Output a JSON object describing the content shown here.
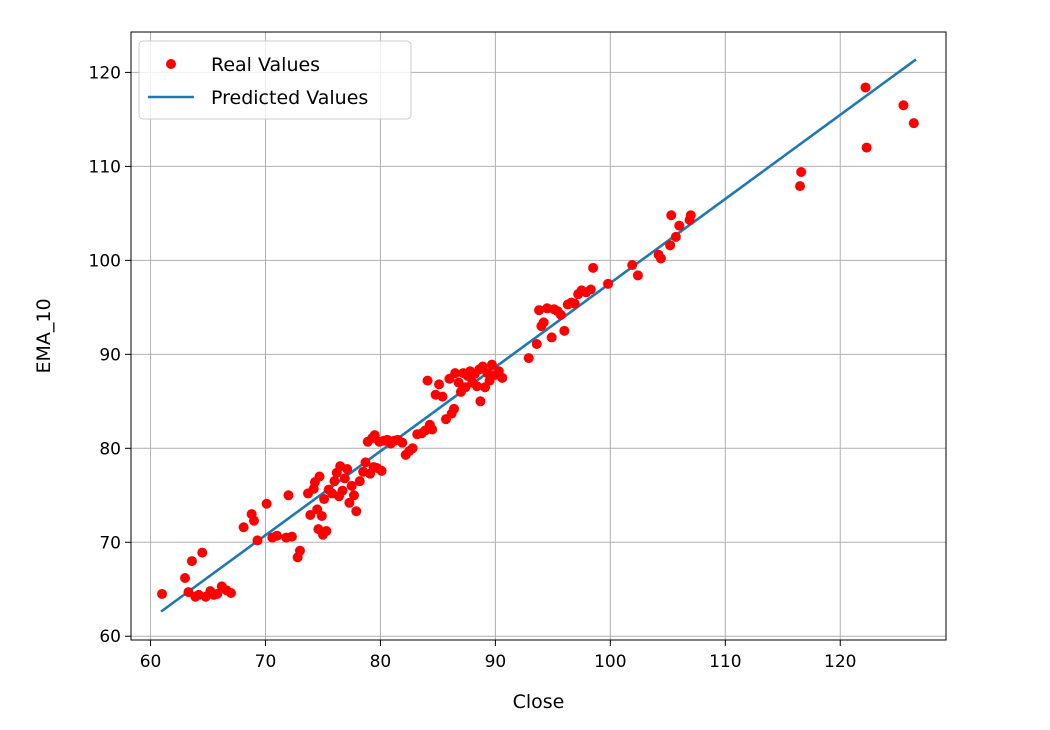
{
  "chart_data": {
    "type": "scatter",
    "xlabel": "Close",
    "ylabel": "EMA_10",
    "xlim": [
      58.3,
      129.2
    ],
    "ylim": [
      59.6,
      124.3
    ],
    "xticks": [
      60,
      70,
      80,
      90,
      100,
      110,
      120
    ],
    "yticks": [
      60,
      70,
      80,
      90,
      100,
      110,
      120
    ],
    "grid": true,
    "legend_position": "top-left",
    "series": [
      {
        "name": "Real Values",
        "kind": "scatter",
        "color": "#ff0000",
        "points": [
          [
            61.0,
            64.5
          ],
          [
            63.0,
            66.2
          ],
          [
            63.3,
            64.7
          ],
          [
            63.6,
            68.0
          ],
          [
            63.9,
            64.2
          ],
          [
            64.2,
            64.4
          ],
          [
            64.5,
            68.9
          ],
          [
            64.8,
            64.2
          ],
          [
            65.2,
            64.8
          ],
          [
            65.5,
            64.4
          ],
          [
            65.8,
            64.5
          ],
          [
            66.2,
            65.3
          ],
          [
            66.6,
            64.9
          ],
          [
            67.0,
            64.6
          ],
          [
            68.1,
            71.6
          ],
          [
            68.8,
            73.0
          ],
          [
            69.0,
            72.3
          ],
          [
            69.3,
            70.2
          ],
          [
            70.1,
            74.1
          ],
          [
            70.6,
            70.5
          ],
          [
            71.0,
            70.7
          ],
          [
            71.8,
            70.5
          ],
          [
            72.0,
            75.0
          ],
          [
            72.3,
            70.6
          ],
          [
            72.8,
            68.4
          ],
          [
            73.0,
            69.1
          ],
          [
            73.7,
            75.2
          ],
          [
            73.9,
            72.9
          ],
          [
            74.2,
            75.7
          ],
          [
            74.3,
            76.4
          ],
          [
            74.5,
            73.5
          ],
          [
            74.6,
            71.4
          ],
          [
            74.7,
            77.0
          ],
          [
            74.9,
            72.8
          ],
          [
            75.0,
            70.8
          ],
          [
            75.1,
            74.6
          ],
          [
            75.3,
            71.2
          ],
          [
            75.5,
            75.6
          ],
          [
            75.8,
            75.2
          ],
          [
            76.0,
            76.5
          ],
          [
            76.2,
            77.4
          ],
          [
            76.4,
            74.9
          ],
          [
            76.5,
            78.1
          ],
          [
            76.7,
            75.5
          ],
          [
            76.9,
            76.8
          ],
          [
            77.1,
            77.8
          ],
          [
            77.3,
            74.2
          ],
          [
            77.5,
            76.0
          ],
          [
            77.7,
            75.0
          ],
          [
            77.9,
            73.3
          ],
          [
            78.2,
            76.5
          ],
          [
            78.5,
            77.5
          ],
          [
            78.7,
            78.5
          ],
          [
            78.9,
            80.7
          ],
          [
            79.1,
            77.3
          ],
          [
            79.3,
            81.1
          ],
          [
            79.4,
            78.0
          ],
          [
            79.5,
            81.4
          ],
          [
            79.7,
            77.9
          ],
          [
            79.9,
            80.7
          ],
          [
            80.1,
            77.6
          ],
          [
            80.3,
            80.8
          ],
          [
            80.6,
            80.9
          ],
          [
            80.9,
            80.5
          ],
          [
            81.2,
            80.8
          ],
          [
            81.5,
            80.9
          ],
          [
            81.9,
            80.6
          ],
          [
            82.2,
            79.3
          ],
          [
            82.5,
            79.7
          ],
          [
            82.8,
            80.0
          ],
          [
            83.2,
            81.5
          ],
          [
            83.6,
            81.6
          ],
          [
            83.9,
            81.9
          ],
          [
            84.1,
            87.2
          ],
          [
            84.3,
            82.5
          ],
          [
            84.5,
            82.0
          ],
          [
            84.8,
            85.7
          ],
          [
            85.1,
            86.8
          ],
          [
            85.4,
            85.5
          ],
          [
            85.7,
            83.1
          ],
          [
            86.0,
            87.4
          ],
          [
            86.2,
            83.7
          ],
          [
            86.4,
            84.2
          ],
          [
            86.5,
            88.0
          ],
          [
            86.8,
            87.0
          ],
          [
            87.0,
            86.0
          ],
          [
            87.2,
            88.0
          ],
          [
            87.4,
            86.5
          ],
          [
            87.6,
            87.7
          ],
          [
            87.8,
            88.2
          ],
          [
            88.0,
            87.0
          ],
          [
            88.2,
            87.9
          ],
          [
            88.4,
            86.6
          ],
          [
            88.6,
            88.4
          ],
          [
            88.7,
            85.0
          ],
          [
            88.9,
            88.7
          ],
          [
            89.1,
            86.5
          ],
          [
            89.3,
            88.0
          ],
          [
            89.5,
            87.2
          ],
          [
            89.7,
            88.9
          ],
          [
            90.0,
            87.8
          ],
          [
            90.3,
            88.2
          ],
          [
            90.6,
            87.5
          ],
          [
            92.9,
            89.6
          ],
          [
            93.6,
            91.1
          ],
          [
            93.8,
            94.7
          ],
          [
            94.0,
            93.0
          ],
          [
            94.2,
            93.4
          ],
          [
            94.5,
            94.9
          ],
          [
            94.9,
            91.8
          ],
          [
            95.1,
            94.8
          ],
          [
            95.4,
            94.6
          ],
          [
            95.7,
            94.2
          ],
          [
            96.0,
            92.5
          ],
          [
            96.3,
            95.3
          ],
          [
            96.6,
            95.5
          ],
          [
            96.9,
            95.4
          ],
          [
            97.2,
            96.4
          ],
          [
            97.5,
            96.8
          ],
          [
            97.9,
            96.6
          ],
          [
            98.3,
            96.9
          ],
          [
            98.5,
            99.2
          ],
          [
            99.8,
            97.5
          ],
          [
            101.9,
            99.5
          ],
          [
            102.4,
            98.4
          ],
          [
            104.2,
            100.6
          ],
          [
            104.4,
            100.2
          ],
          [
            105.2,
            101.6
          ],
          [
            105.3,
            104.8
          ],
          [
            105.7,
            102.5
          ],
          [
            106.0,
            103.7
          ],
          [
            106.9,
            104.3
          ],
          [
            107.0,
            104.8
          ],
          [
            116.5,
            107.9
          ],
          [
            116.6,
            109.4
          ],
          [
            122.2,
            118.4
          ],
          [
            122.3,
            112.0
          ],
          [
            125.5,
            116.5
          ],
          [
            126.4,
            114.6
          ]
        ]
      },
      {
        "name": "Predicted Values",
        "kind": "line",
        "color": "#1f77b4",
        "points": [
          [
            61.0,
            62.7
          ],
          [
            126.5,
            121.3
          ]
        ]
      }
    ]
  }
}
